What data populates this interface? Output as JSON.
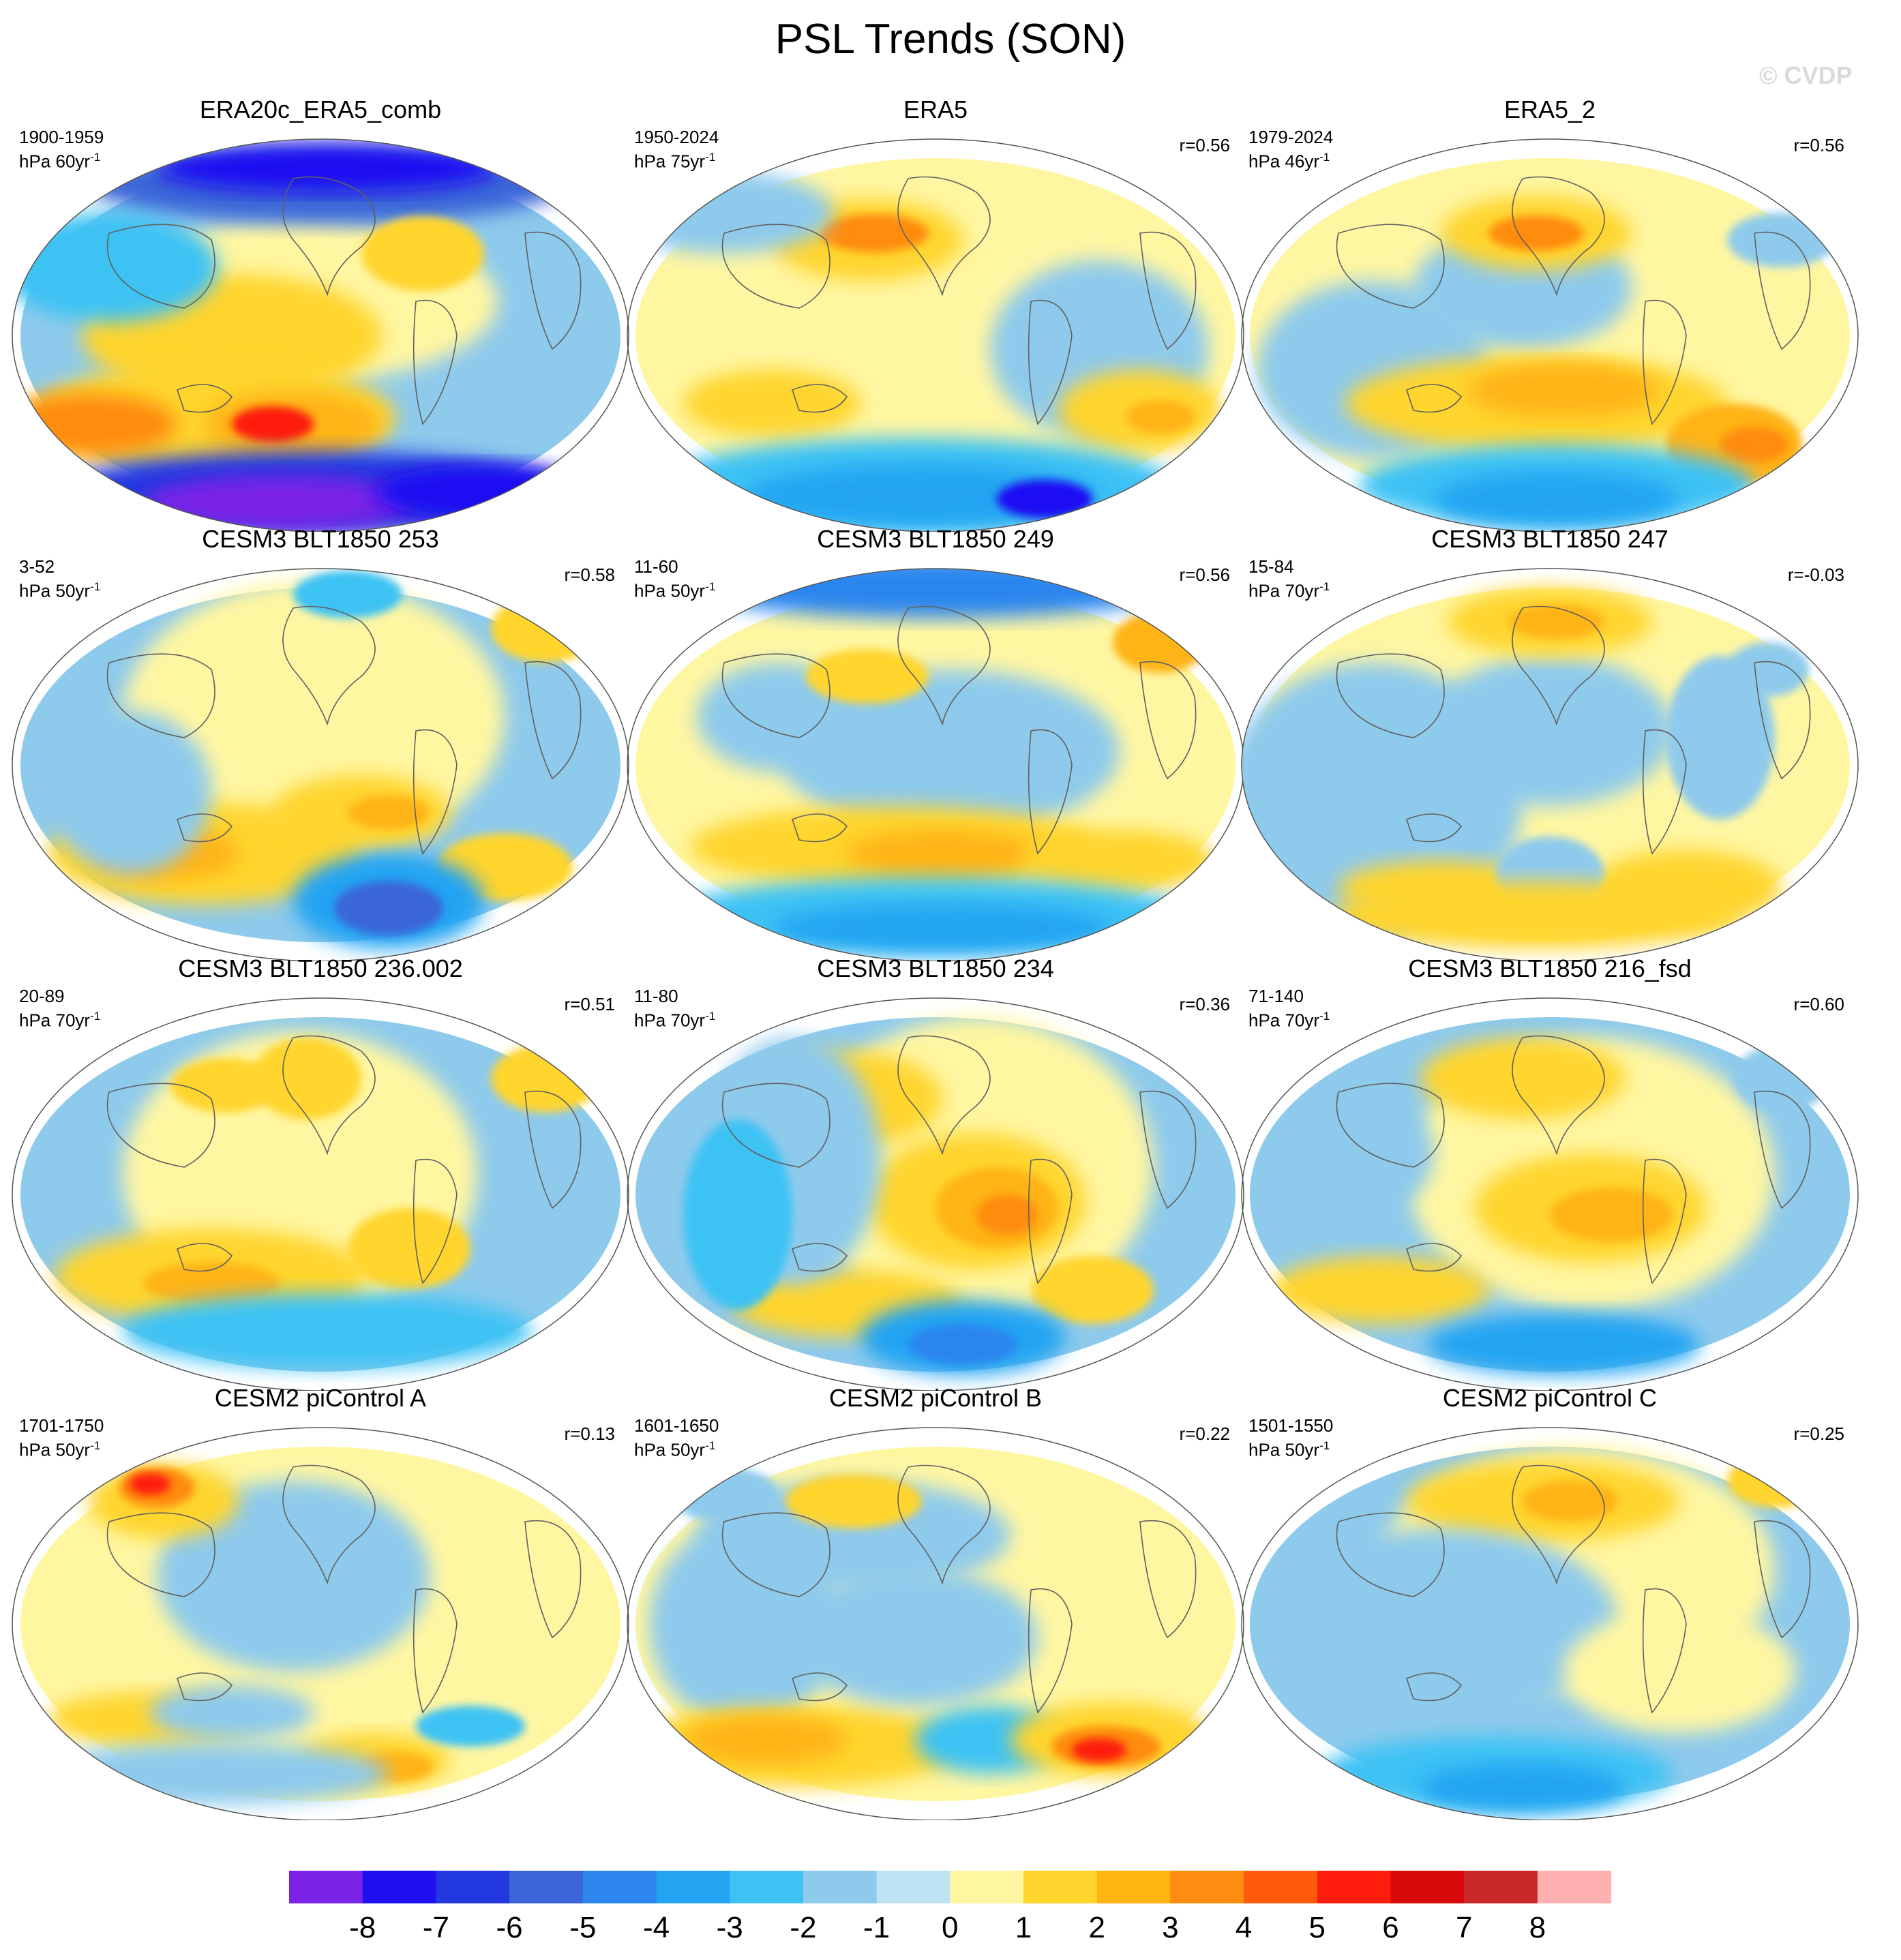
{
  "title": "PSL Trends (SON)",
  "credit": "© CVDP",
  "chart_data": {
    "type": "heatmap",
    "projection": "global map panels (3 columns x 4 rows)",
    "colorbar": {
      "ticks": [
        "-8",
        "-7",
        "-6",
        "-5",
        "-4",
        "-3",
        "-2",
        "-1",
        "0",
        "1",
        "2",
        "3",
        "4",
        "5",
        "6",
        "7",
        "8"
      ],
      "colors": [
        "#7a22e6",
        "#1e10f2",
        "#2438e0",
        "#3a66d8",
        "#2c86ee",
        "#22a4f2",
        "#3ec2f4",
        "#8ecaec",
        "#bde3f3",
        "#fff6a2",
        "#ffd52e",
        "#ffb412",
        "#ff8c10",
        "#ff5a0c",
        "#ff1e0e",
        "#d80a0a",
        "#c82828",
        "#ffb0b0"
      ]
    },
    "panels": [
      {
        "title": "ERA20c_ERA5_comb",
        "period": "1900-1959",
        "units": "hPa 60yr",
        "units_sup": "-1",
        "r": ""
      },
      {
        "title": "ERA5",
        "period": "1950-2024",
        "units": "hPa 75yr",
        "units_sup": "-1",
        "r": "r=0.56"
      },
      {
        "title": "ERA5_2",
        "period": "1979-2024",
        "units": "hPa 46yr",
        "units_sup": "-1",
        "r": "r=0.56"
      },
      {
        "title": "CESM3 BLT1850 253",
        "period": "3-52",
        "units": "hPa 50yr",
        "units_sup": "-1",
        "r": "r=0.58"
      },
      {
        "title": "CESM3 BLT1850 249",
        "period": "11-60",
        "units": "hPa 50yr",
        "units_sup": "-1",
        "r": "r=0.56"
      },
      {
        "title": "CESM3 BLT1850 247",
        "period": "15-84",
        "units": "hPa 70yr",
        "units_sup": "-1",
        "r": "r=-0.03"
      },
      {
        "title": "CESM3 BLT1850 236.002",
        "period": "20-89",
        "units": "hPa 70yr",
        "units_sup": "-1",
        "r": "r=0.51"
      },
      {
        "title": "CESM3 BLT1850 234",
        "period": "11-80",
        "units": "hPa 70yr",
        "units_sup": "-1",
        "r": "r=0.36"
      },
      {
        "title": "CESM3 BLT1850 216_fsd",
        "period": "71-140",
        "units": "hPa 70yr",
        "units_sup": "-1",
        "r": "r=0.60"
      },
      {
        "title": "CESM2 piControl A",
        "period": "1701-1750",
        "units": "hPa 50yr",
        "units_sup": "-1",
        "r": "r=0.13"
      },
      {
        "title": "CESM2 piControl B",
        "period": "1601-1650",
        "units": "hPa 50yr",
        "units_sup": "-1",
        "r": "r=0.22"
      },
      {
        "title": "CESM2 piControl C",
        "period": "1501-1550",
        "units": "hPa 50yr",
        "units_sup": "-1",
        "r": "r=0.25"
      }
    ]
  }
}
